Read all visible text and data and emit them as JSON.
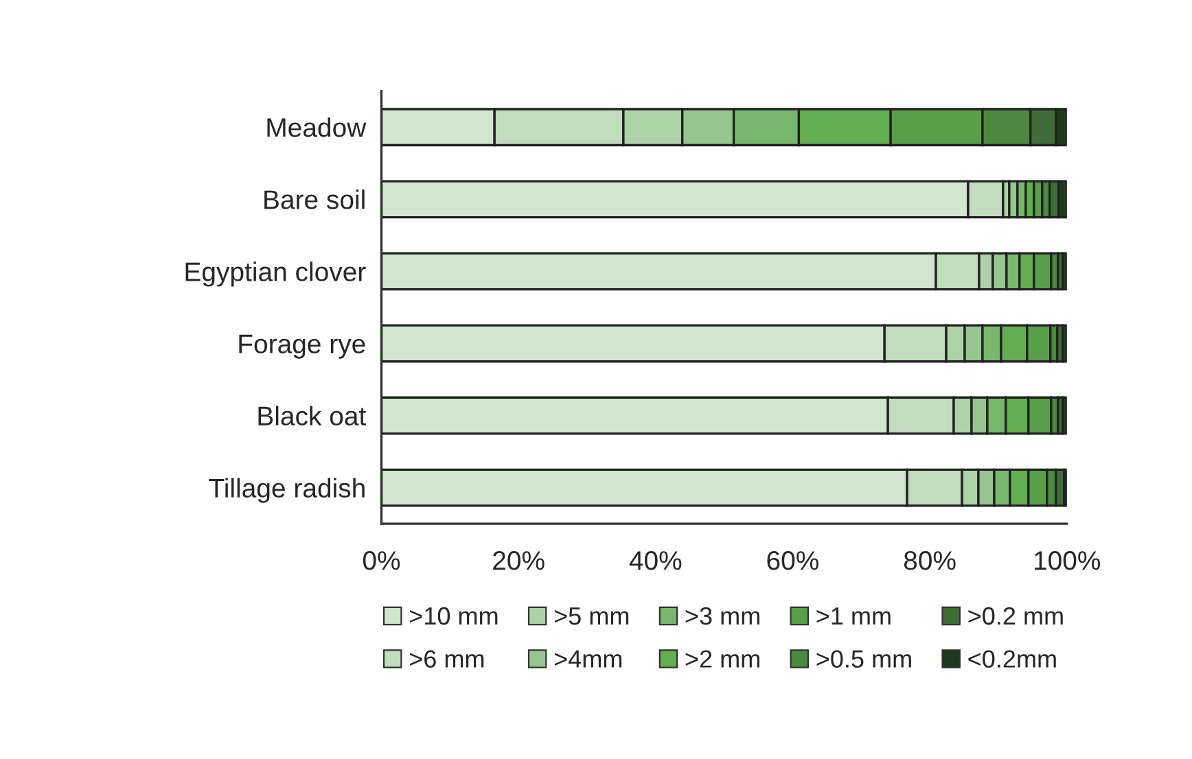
{
  "chart_data": {
    "type": "bar",
    "orientation": "horizontal",
    "stacked": true,
    "legend": "bottom",
    "grid": false,
    "categories": [
      "Meadow",
      "Bare soil",
      "Egyptian clover",
      "Forage rye",
      "Black oat",
      "Tillage radish"
    ],
    "xlim": [
      0,
      100
    ],
    "xticks": [
      {
        "value": 0,
        "label": "0%"
      },
      {
        "value": 20,
        "label": "20%"
      },
      {
        "value": 40,
        "label": "40%"
      },
      {
        "value": 60,
        "label": "60%"
      },
      {
        "value": 80,
        "label": "80%"
      },
      {
        "value": 100,
        "label": "100%"
      }
    ],
    "series": [
      {
        "name": ">10 mm",
        "color": "#d2e5cf",
        "values": [
          16.5,
          85.6,
          80.9,
          73.4,
          73.9,
          76.7
        ]
      },
      {
        "name": ">6 mm",
        "color": "#c2dcbe",
        "values": [
          18.8,
          5.1,
          6.3,
          9.0,
          9.6,
          8.0
        ]
      },
      {
        "name": ">5 mm",
        "color": "#aed2a8",
        "values": [
          8.6,
          0.9,
          2.0,
          2.7,
          2.6,
          2.4
        ]
      },
      {
        "name": ">4mm",
        "color": "#96c58f",
        "values": [
          7.5,
          1.2,
          2.0,
          2.6,
          2.3,
          2.3
        ]
      },
      {
        "name": ">3 mm",
        "color": "#78b86d",
        "values": [
          9.5,
          1.2,
          1.9,
          2.7,
          2.7,
          2.3
        ]
      },
      {
        "name": ">2 mm",
        "color": "#62ae50",
        "values": [
          13.4,
          1.2,
          2.1,
          3.8,
          3.3,
          2.7
        ]
      },
      {
        "name": ">1 mm",
        "color": "#589f47",
        "values": [
          13.4,
          1.2,
          2.5,
          3.4,
          3.3,
          2.7
        ]
      },
      {
        "name": ">0.5 mm",
        "color": "#4b893e",
        "values": [
          7.0,
          1.1,
          1.0,
          1.0,
          1.0,
          1.3
        ]
      },
      {
        "name": ">0.2 mm",
        "color": "#3e6e36",
        "values": [
          3.7,
          1.3,
          0.7,
          0.8,
          0.7,
          1.2
        ]
      },
      {
        "name": "<0.2mm",
        "color": "#1f3b1d",
        "values": [
          1.6,
          1.3,
          0.6,
          0.6,
          0.6,
          0.4
        ]
      }
    ]
  }
}
